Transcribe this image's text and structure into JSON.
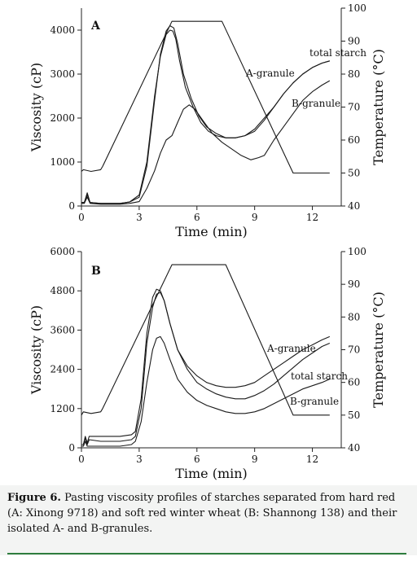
{
  "figure": {
    "caption_label": "Figure 6.",
    "caption_text": "Pasting viscosity profiles of starches separated from hard red (A: Xinong 9718) and soft red winter wheat (B: Shannong 138) and their isolated A- and B-granules."
  },
  "chart_data": [
    {
      "type": "line",
      "panel_label": "A",
      "xlabel": "Time (min)",
      "ylabel": "Viscosity (cP)",
      "y2label": "Temperature (°C)",
      "xlim": [
        0,
        13.5
      ],
      "ylim": [
        0,
        4500
      ],
      "y2lim": [
        40,
        100
      ],
      "xticks": [
        0,
        3,
        6,
        9,
        12
      ],
      "yticks": [
        0,
        1000,
        2000,
        3000,
        4000
      ],
      "y2ticks": [
        40,
        50,
        60,
        70,
        80,
        90,
        100
      ],
      "series": [
        {
          "name": "total starch",
          "axis": "y",
          "x": [
            0,
            0.15,
            0.3,
            0.45,
            1,
            2,
            2.5,
            3,
            3.4,
            3.8,
            4.1,
            4.4,
            4.6,
            4.75,
            4.9,
            5.1,
            5.4,
            5.8,
            6.2,
            6.6,
            7,
            7.5,
            8,
            8.5,
            9,
            9.5,
            10,
            10.5,
            11,
            11.5,
            12,
            12.5,
            12.9
          ],
          "y": [
            80,
            80,
            300,
            80,
            60,
            60,
            90,
            250,
            1000,
            2500,
            3400,
            3900,
            4000,
            3980,
            3800,
            3300,
            2700,
            2250,
            1900,
            1700,
            1600,
            1550,
            1550,
            1600,
            1750,
            2000,
            2250,
            2550,
            2800,
            3000,
            3150,
            3250,
            3300
          ]
        },
        {
          "name": "A-granule",
          "axis": "y",
          "x": [
            0,
            0.15,
            0.3,
            0.45,
            1,
            2,
            2.5,
            3,
            3.4,
            3.8,
            4.1,
            4.4,
            4.6,
            4.8,
            5,
            5.3,
            5.7,
            6.1,
            6.5,
            7,
            7.5,
            8,
            8.5,
            9,
            9.5,
            10,
            10.5,
            11,
            11.5,
            12,
            12.5,
            12.9
          ],
          "y": [
            80,
            80,
            250,
            80,
            60,
            60,
            90,
            200,
            900,
            2400,
            3450,
            3980,
            4100,
            4050,
            3700,
            3000,
            2450,
            2050,
            1800,
            1650,
            1550,
            1550,
            1600,
            1700,
            1950,
            2250,
            2550,
            2800,
            3000,
            3150,
            3250,
            3300
          ]
        },
        {
          "name": "B-granule",
          "axis": "y",
          "x": [
            0,
            0.15,
            0.3,
            0.45,
            1,
            2,
            2.5,
            3,
            3.4,
            3.8,
            4.1,
            4.4,
            4.7,
            5,
            5.3,
            5.6,
            5.9,
            6.3,
            6.8,
            7.3,
            7.8,
            8.3,
            8.8,
            9.2,
            9.5,
            10,
            10.5,
            11,
            11.5,
            12,
            12.5,
            12.9
          ],
          "y": [
            60,
            60,
            200,
            60,
            40,
            40,
            60,
            100,
            400,
            800,
            1200,
            1500,
            1600,
            1900,
            2200,
            2300,
            2200,
            1950,
            1650,
            1450,
            1300,
            1150,
            1050,
            1100,
            1150,
            1500,
            1800,
            2100,
            2400,
            2600,
            2750,
            2850
          ]
        },
        {
          "name": "Temperature",
          "axis": "y2",
          "x": [
            0,
            0.1,
            0.5,
            1,
            1.1,
            4.7,
            7.3,
            11,
            11.5,
            12.9
          ],
          "y": [
            50.5,
            51,
            50.5,
            51,
            52,
            96,
            96,
            50,
            50,
            50
          ]
        }
      ],
      "annotations": [
        "total starch",
        "A-granule",
        "B-granule"
      ]
    },
    {
      "type": "line",
      "panel_label": "B",
      "xlabel": "Time (min)",
      "ylabel": "Viscosity (cP)",
      "y2label": "Temperature (°C)",
      "xlim": [
        0,
        13.5
      ],
      "ylim": [
        0,
        6000
      ],
      "y2lim": [
        40,
        100
      ],
      "xticks": [
        0,
        3,
        6,
        9,
        12
      ],
      "yticks": [
        0,
        1200,
        2400,
        3600,
        4800,
        6000
      ],
      "y2ticks": [
        40,
        50,
        60,
        70,
        80,
        90,
        100
      ],
      "series": [
        {
          "name": "A-granule",
          "axis": "y",
          "x": [
            0,
            0.1,
            0.2,
            0.3,
            0.4,
            1,
            2,
            2.6,
            2.8,
            3.1,
            3.4,
            3.7,
            3.9,
            4.1,
            4.3,
            4.6,
            5,
            5.5,
            6,
            6.5,
            7,
            7.5,
            8,
            8.5,
            9,
            9.5,
            10,
            10.5,
            11,
            11.5,
            12,
            12.5,
            12.9
          ],
          "y": [
            100,
            100,
            350,
            150,
            350,
            350,
            350,
            400,
            500,
            1500,
            3500,
            4600,
            4850,
            4800,
            4500,
            3800,
            3000,
            2500,
            2200,
            2000,
            1900,
            1850,
            1850,
            1900,
            2000,
            2200,
            2400,
            2600,
            2800,
            3000,
            3150,
            3300,
            3400
          ]
        },
        {
          "name": "total starch",
          "axis": "y",
          "x": [
            0,
            0.1,
            0.2,
            0.3,
            0.4,
            1,
            2,
            2.6,
            2.8,
            3.1,
            3.4,
            3.7,
            3.9,
            4.1,
            4.3,
            4.6,
            5,
            5.5,
            6,
            6.5,
            7,
            7.5,
            8,
            8.5,
            9,
            9.5,
            10,
            10.5,
            11,
            11.5,
            12,
            12.5,
            12.9
          ],
          "y": [
            100,
            100,
            300,
            100,
            250,
            200,
            200,
            250,
            350,
            1200,
            3200,
            4300,
            4700,
            4750,
            4500,
            3800,
            3000,
            2400,
            2000,
            1800,
            1650,
            1550,
            1500,
            1500,
            1600,
            1750,
            1950,
            2200,
            2450,
            2700,
            2900,
            3100,
            3200
          ]
        },
        {
          "name": "B-granule",
          "axis": "y",
          "x": [
            0,
            0.1,
            0.2,
            0.3,
            1,
            2,
            2.6,
            2.8,
            3.1,
            3.4,
            3.7,
            3.9,
            4.1,
            4.3,
            4.6,
            5,
            5.5,
            6,
            6.5,
            7,
            7.5,
            8,
            8.5,
            9,
            9.5,
            10,
            10.5,
            11,
            11.5,
            12,
            12.5,
            12.9
          ],
          "y": [
            50,
            50,
            200,
            50,
            50,
            50,
            100,
            200,
            800,
            2000,
            3000,
            3350,
            3400,
            3200,
            2700,
            2100,
            1700,
            1450,
            1300,
            1200,
            1100,
            1050,
            1050,
            1100,
            1200,
            1350,
            1500,
            1650,
            1800,
            1900,
            2000,
            2100
          ]
        },
        {
          "name": "Temperature",
          "axis": "y2",
          "x": [
            0,
            0.1,
            0.5,
            1,
            1.1,
            4.7,
            7.5,
            11,
            11.5,
            12.9
          ],
          "y": [
            50,
            51,
            50.5,
            51,
            52,
            96,
            96,
            50,
            50,
            50
          ]
        }
      ],
      "annotations": [
        "A-granule",
        "total starch",
        "B-granule"
      ]
    }
  ]
}
